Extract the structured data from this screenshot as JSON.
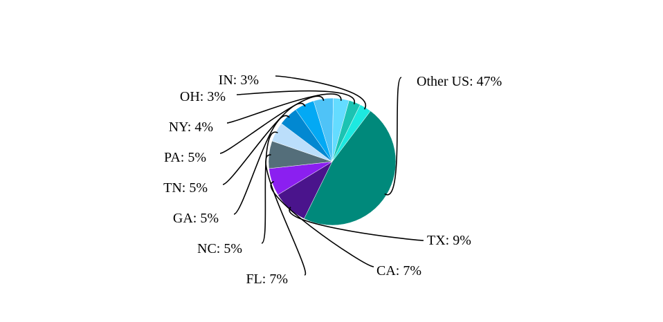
{
  "chart_data": {
    "type": "pie",
    "title": "",
    "slices": [
      {
        "label": "Other US",
        "value": 47,
        "display": "Other US: 47%",
        "color": "#00897b"
      },
      {
        "label": "TX",
        "value": 9,
        "display": "TX: 9%",
        "color": "#4a148c"
      },
      {
        "label": "CA",
        "value": 7,
        "display": "CA: 7%",
        "color": "#8b1ff0"
      },
      {
        "label": "FL",
        "value": 7,
        "display": "FL: 7%",
        "color": "#546e7a"
      },
      {
        "label": "NC",
        "value": 5,
        "display": "NC: 5%",
        "color": "#bbdefb"
      },
      {
        "label": "GA",
        "value": 5,
        "display": "GA: 5%",
        "color": "#0288d1"
      },
      {
        "label": "TN",
        "value": 5,
        "display": "TN: 5%",
        "color": "#03a9f4"
      },
      {
        "label": "PA",
        "value": 5,
        "display": "PA: 5%",
        "color": "#4fc3f7"
      },
      {
        "label": "NY",
        "value": 4,
        "display": "NY: 4%",
        "color": "#64dcff"
      },
      {
        "label": "OH",
        "value": 3,
        "display": "OH: 3%",
        "color": "#1cc3b2"
      },
      {
        "label": "IN",
        "value": 3,
        "display": "IN: 3%",
        "color": "#1de9e0"
      }
    ],
    "legend": "none",
    "label_style": "outside-with-leader-lines"
  }
}
